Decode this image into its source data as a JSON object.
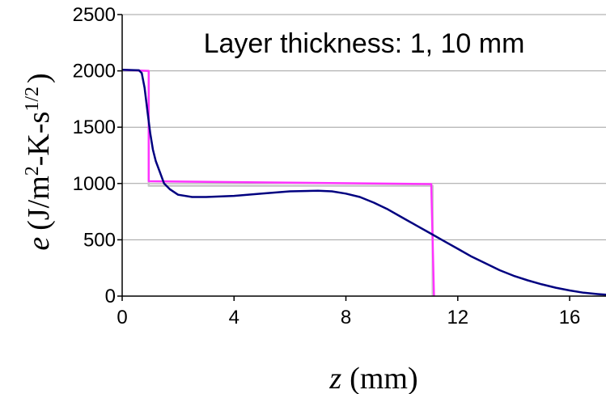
{
  "chart_data": {
    "type": "line",
    "title": "Layer thickness: 1, 10 mm",
    "xlabel": {
      "symbol": "z",
      "unit": "(mm)"
    },
    "ylabel": {
      "symbol": "e",
      "unit_prefix": "(J/m",
      "sup1": "2",
      "unit_mid": "-K-s",
      "sup2": "1/2",
      "unit_suffix": ")"
    },
    "xlim": [
      0,
      17.3
    ],
    "ylim": [
      0,
      2500
    ],
    "xticks": [
      0,
      4,
      8,
      12,
      16
    ],
    "yticks": [
      0,
      500,
      1000,
      1500,
      2000,
      2500
    ],
    "grid": "horizontal",
    "series": [
      {
        "color": "#c8c8c8",
        "points": [
          [
            0,
            2000
          ],
          [
            0.95,
            2000
          ],
          [
            0.95,
            980
          ],
          [
            11.1,
            980
          ],
          [
            11.1,
            0
          ]
        ]
      },
      {
        "color": "#ff33ff",
        "points": [
          [
            0,
            2010
          ],
          [
            0.95,
            2000
          ],
          [
            0.95,
            1020
          ],
          [
            11,
            995
          ],
          [
            11.05,
            995
          ],
          [
            11.15,
            0
          ]
        ]
      },
      {
        "color": "#000080",
        "points": [
          [
            0,
            2010
          ],
          [
            0.6,
            2005
          ],
          [
            0.7,
            1980
          ],
          [
            0.8,
            1850
          ],
          [
            0.9,
            1650
          ],
          [
            1.0,
            1450
          ],
          [
            1.1,
            1300
          ],
          [
            1.2,
            1200
          ],
          [
            1.35,
            1100
          ],
          [
            1.5,
            1000
          ],
          [
            1.7,
            950
          ],
          [
            2,
            900
          ],
          [
            2.5,
            880
          ],
          [
            3,
            880
          ],
          [
            4,
            890
          ],
          [
            5,
            910
          ],
          [
            6,
            930
          ],
          [
            7,
            935
          ],
          [
            7.5,
            930
          ],
          [
            8,
            910
          ],
          [
            8.5,
            880
          ],
          [
            9,
            830
          ],
          [
            9.5,
            770
          ],
          [
            10,
            700
          ],
          [
            10.5,
            630
          ],
          [
            11,
            560
          ],
          [
            11.5,
            490
          ],
          [
            12,
            420
          ],
          [
            12.5,
            350
          ],
          [
            13,
            290
          ],
          [
            13.5,
            230
          ],
          [
            14,
            180
          ],
          [
            14.5,
            140
          ],
          [
            15,
            105
          ],
          [
            15.5,
            75
          ],
          [
            16,
            50
          ],
          [
            16.5,
            30
          ],
          [
            17,
            18
          ],
          [
            17.3,
            12
          ]
        ]
      }
    ]
  }
}
